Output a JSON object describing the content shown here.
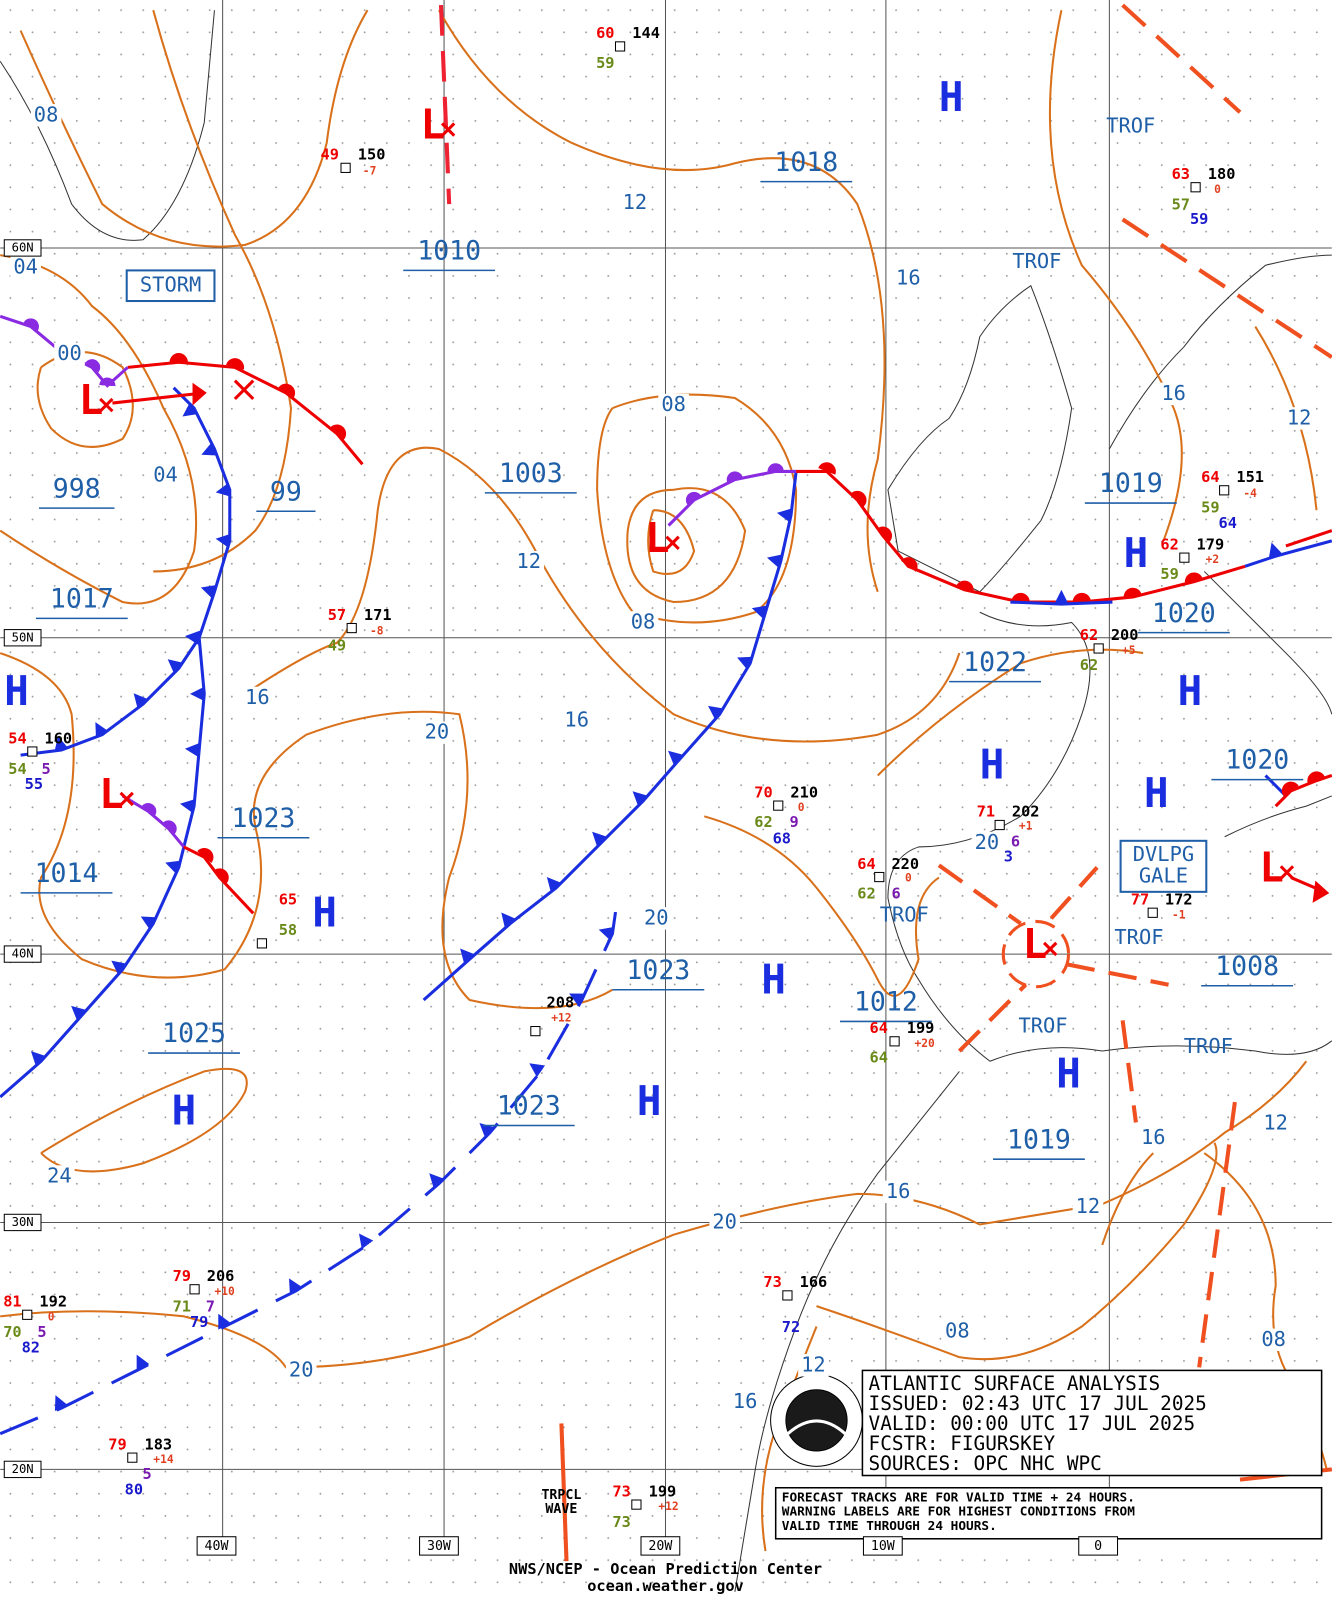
{
  "pressure_labels": [
    "1018",
    "1010",
    "1003",
    "998",
    "99",
    "1017",
    "1019",
    "1020",
    "1022",
    "1023",
    "1014",
    "1023",
    "1025",
    "1023",
    "1012",
    "1008",
    "1019",
    "1020"
  ],
  "isobar_labels": [
    "08",
    "12",
    "04",
    "00",
    "16",
    "04",
    "08",
    "12",
    "08",
    "16",
    "12",
    "16",
    "20",
    "16",
    "20",
    "20",
    "24",
    "20",
    "16",
    "12",
    "16",
    "12",
    "20",
    "08",
    "08",
    "12",
    "16"
  ],
  "highs": [
    "H",
    "H",
    "H",
    "H",
    "H",
    "H",
    "H",
    "H",
    "H",
    "H",
    "H"
  ],
  "lows": [
    "L",
    "L",
    "L",
    "L",
    "L",
    "L"
  ],
  "trofs": [
    "TROF",
    "TROF",
    "TROF",
    "TROF",
    "TROF",
    "TROF"
  ],
  "warnings": [
    "STORM",
    "DVLPG",
    "GALE"
  ],
  "stations": [
    [
      "60",
      "144",
      "59"
    ],
    [
      "49",
      "150",
      "-7"
    ],
    [
      "63",
      "180",
      "0",
      "57",
      "59"
    ],
    [
      "64",
      "151",
      "-4",
      "59",
      "64"
    ],
    [
      "62",
      "179",
      "+2",
      "59"
    ],
    [
      "57",
      "171",
      "-8",
      "49"
    ],
    [
      "62",
      "200",
      "+5",
      "62"
    ],
    [
      "54",
      "160",
      "54",
      "5",
      "55"
    ],
    [
      "70",
      "210",
      "0",
      "62",
      "9",
      "68"
    ],
    [
      "71",
      "202",
      "+1",
      "6",
      "3"
    ],
    [
      "64",
      "220",
      "0",
      "62",
      "6"
    ],
    [
      "77",
      "172",
      "-1"
    ],
    [
      "65",
      "58"
    ],
    [
      "208",
      "+12"
    ],
    [
      "64",
      "199",
      "+20",
      "64"
    ],
    [
      "79",
      "206",
      "+10",
      "71",
      "7",
      "79"
    ],
    [
      "81",
      "192",
      "0",
      "70",
      "5",
      "82"
    ],
    [
      "73",
      "166",
      "72"
    ],
    [
      "79",
      "183",
      "+14",
      "5",
      "80"
    ],
    [
      "73",
      "199",
      "+12",
      "73"
    ]
  ],
  "tropical_wave": [
    "TRPCL",
    "WAVE"
  ],
  "grid_labels": {
    "lat": [
      "60N",
      "50N",
      "40N",
      "30N",
      "20N"
    ],
    "lon": [
      "40W",
      "30W",
      "20W",
      "10W",
      "0"
    ]
  },
  "info_box": [
    "ATLANTIC SURFACE ANALYSIS",
    "ISSUED: 02:43 UTC 17 JUL 2025",
    "VALID:  00:00 UTC 17 JUL 2025",
    "FCSTR:  FIGURSKEY",
    "SOURCES: OPC NHC WPC"
  ],
  "notice": [
    "FORECAST TRACKS ARE FOR VALID TIME + 24 HOURS.",
    "WARNING LABELS ARE FOR HIGHEST CONDITIONS FROM",
    "VALID TIME THROUGH 24 HOURS."
  ],
  "footer": [
    "NWS/NCEP - Ocean Prediction Center",
    "ocean.weather.gov"
  ]
}
